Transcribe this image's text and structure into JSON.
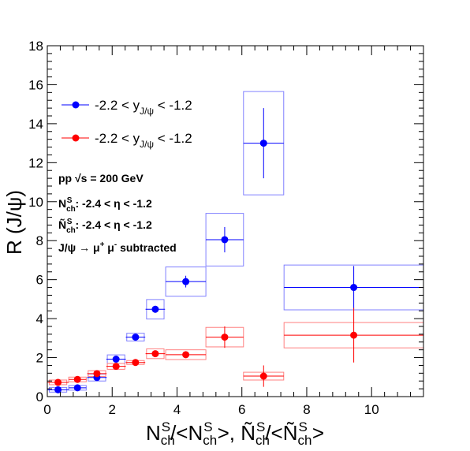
{
  "chart_data": {
    "type": "scatter",
    "xlabel": "N<sub>ch</sub><sup>S</sup>/<N<sub>ch</sub><sup>S</sup>>, Ñ<sub>ch</sub><sup>S</sup>/<Ñ<sub>ch</sub><sup>S</sup>>",
    "ylabel": "R (J/ψ)",
    "xlim": [
      0,
      11.6
    ],
    "ylim": [
      0,
      18
    ],
    "x_ticks": [
      0,
      2,
      4,
      6,
      8,
      10
    ],
    "y_ticks": [
      0,
      2,
      4,
      6,
      8,
      10,
      12,
      14,
      16,
      18
    ],
    "grid": false,
    "legend_position": "top-left",
    "series": [
      {
        "name": "-2.2 < yJ/ψ < -1.2",
        "color": "#0000ff",
        "box_color": "#8080ff",
        "points": [
          {
            "x": 0.33,
            "y": 0.35,
            "xerr": 0.33,
            "yerr": 0.08,
            "sys_x": 0.27,
            "sys_y": 0.12
          },
          {
            "x": 0.93,
            "y": 0.45,
            "xerr": 0.27,
            "yerr": 0.07,
            "sys_x": 0.27,
            "sys_y": 0.12
          },
          {
            "x": 1.53,
            "y": 0.98,
            "xerr": 0.3,
            "yerr": 0.1,
            "sys_x": 0.27,
            "sys_y": 0.18
          },
          {
            "x": 2.12,
            "y": 1.92,
            "xerr": 0.3,
            "yerr": 0.12,
            "sys_x": 0.27,
            "sys_y": 0.22
          },
          {
            "x": 2.72,
            "y": 3.05,
            "xerr": 0.3,
            "yerr": 0.15,
            "sys_x": 0.27,
            "sys_y": 0.2
          },
          {
            "x": 3.33,
            "y": 4.48,
            "xerr": 0.3,
            "yerr": 0.18,
            "sys_x": 0.27,
            "sys_y": 0.5
          },
          {
            "x": 4.27,
            "y": 5.9,
            "xerr": 0.62,
            "yerr": 0.3,
            "sys_x": 0.62,
            "sys_y": 0.75
          },
          {
            "x": 5.47,
            "y": 8.05,
            "xerr": 0.58,
            "yerr": 0.65,
            "sys_x": 0.58,
            "sys_y": 1.35
          },
          {
            "x": 6.67,
            "y": 13.0,
            "xerr": 0.62,
            "yerr": 1.8,
            "sys_x": 0.62,
            "sys_y": 2.65
          },
          {
            "x": 9.45,
            "y": 5.6,
            "xerr": 2.15,
            "yerr": 1.1,
            "sys_x": 2.15,
            "sys_y": 1.15
          }
        ]
      },
      {
        "name": "-2.2 < yJ/ψ < -1.2",
        "color": "#ff0000",
        "box_color": "#ff8080",
        "points": [
          {
            "x": 0.33,
            "y": 0.73,
            "xerr": 0.33,
            "yerr": 0.08,
            "sys_x": 0.27,
            "sys_y": 0.12
          },
          {
            "x": 0.93,
            "y": 0.88,
            "xerr": 0.27,
            "yerr": 0.08,
            "sys_x": 0.27,
            "sys_y": 0.12
          },
          {
            "x": 1.53,
            "y": 1.18,
            "xerr": 0.3,
            "yerr": 0.1,
            "sys_x": 0.27,
            "sys_y": 0.15
          },
          {
            "x": 2.12,
            "y": 1.55,
            "xerr": 0.3,
            "yerr": 0.1,
            "sys_x": 0.27,
            "sys_y": 0.15
          },
          {
            "x": 2.72,
            "y": 1.75,
            "xerr": 0.3,
            "yerr": 0.12,
            "sys_x": 0.27,
            "sys_y": 0.1
          },
          {
            "x": 3.33,
            "y": 2.2,
            "xerr": 0.3,
            "yerr": 0.15,
            "sys_x": 0.27,
            "sys_y": 0.25
          },
          {
            "x": 4.27,
            "y": 2.15,
            "xerr": 0.62,
            "yerr": 0.15,
            "sys_x": 0.62,
            "sys_y": 0.25
          },
          {
            "x": 5.47,
            "y": 3.05,
            "xerr": 0.58,
            "yerr": 0.55,
            "sys_x": 0.58,
            "sys_y": 0.5
          },
          {
            "x": 6.67,
            "y": 1.05,
            "xerr": 0.62,
            "yerr": 0.55,
            "sys_x": 0.62,
            "sys_y": 0.2
          },
          {
            "x": 9.45,
            "y": 3.15,
            "xerr": 2.15,
            "yerr": 1.4,
            "sys_x": 2.15,
            "sys_y": 0.65
          }
        ]
      }
    ],
    "annotations": [
      "pp √s = 200 GeV",
      "NchS: -2.4 < η < -1.2",
      "ÑchS: -2.4 < η < -1.2",
      "J/ψ → μ+ μ- subtracted"
    ]
  }
}
